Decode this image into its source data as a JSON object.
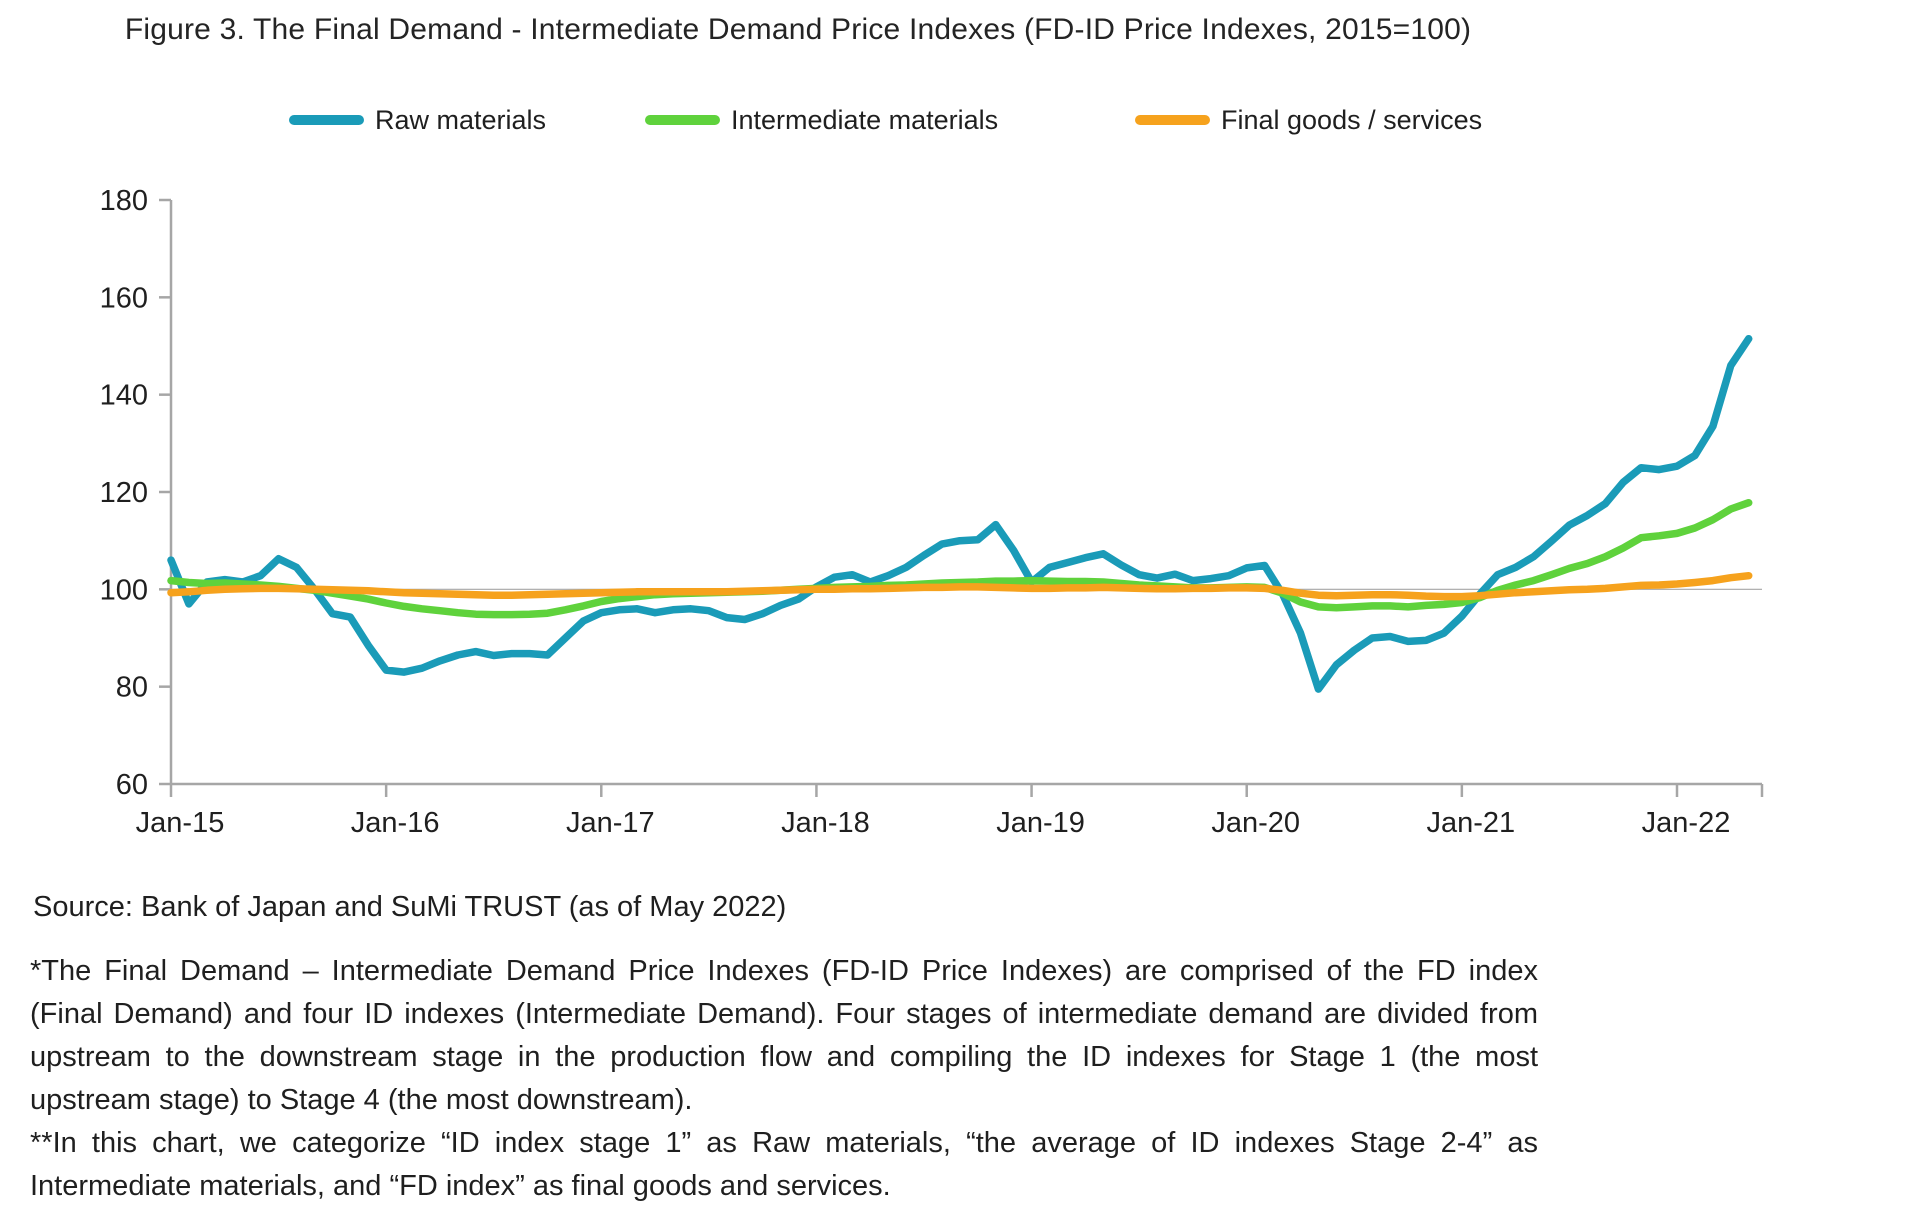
{
  "title": "Figure 3. The Final Demand - Intermediate Demand Price Indexes (FD-ID Price Indexes, 2015=100)",
  "legend": [
    {
      "label": "Raw materials",
      "color": "#1a9bb8"
    },
    {
      "label": "Intermediate materials",
      "color": "#5fd23c"
    },
    {
      "label": "Final goods / services",
      "color": "#f6a21d"
    }
  ],
  "chart_data": {
    "type": "line",
    "title": "Figure 3. The Final Demand - Intermediate Demand Price Indexes (FD-ID Price Indexes, 2015=100)",
    "x_start": "Jan-2015",
    "x_end": "May-2022",
    "x_frequency": "monthly",
    "x_tick_labels": [
      "Jan-15",
      "Jan-16",
      "Jan-17",
      "Jan-18",
      "Jan-19",
      "Jan-20",
      "Jan-21",
      "Jan-22"
    ],
    "y_ticks": [
      60,
      80,
      100,
      120,
      140,
      160,
      180
    ],
    "ylim": [
      60,
      180
    ],
    "baseline_value": 100,
    "grid": "baseline-only",
    "legend_position": "top",
    "axis_color": "#a6a6a6",
    "series": [
      {
        "name": "Raw materials",
        "color": "#1a9bb8",
        "values": [
          106.0,
          97.0,
          101.5,
          102.0,
          101.5,
          102.8,
          106.3,
          104.5,
          100.0,
          95.0,
          94.3,
          88.5,
          83.4,
          83.0,
          83.8,
          85.3,
          86.5,
          87.2,
          86.4,
          86.8,
          86.8,
          86.5,
          90.0,
          93.5,
          95.2,
          95.8,
          96.0,
          95.2,
          95.8,
          96.0,
          95.6,
          94.2,
          93.8,
          95.0,
          96.7,
          98.0,
          100.5,
          102.5,
          103.0,
          101.5,
          102.8,
          104.5,
          107.0,
          109.3,
          110.0,
          110.2,
          113.3,
          108.0,
          101.5,
          104.5,
          105.5,
          106.5,
          107.3,
          105.0,
          103.0,
          102.3,
          103.1,
          101.8,
          102.2,
          102.8,
          104.4,
          104.9,
          99.0,
          91.0,
          79.5,
          84.5,
          87.5,
          90.0,
          90.3,
          89.3,
          89.5,
          91.0,
          94.5,
          99.0,
          103.0,
          104.5,
          106.7,
          109.9,
          113.2,
          115.2,
          117.6,
          122.0,
          125.0,
          124.6,
          125.3,
          127.5,
          133.5,
          146.0,
          151.5
        ]
      },
      {
        "name": "Intermediate materials",
        "color": "#5fd23c",
        "values": [
          101.8,
          101.4,
          101.2,
          101.3,
          101.1,
          100.9,
          100.6,
          100.2,
          99.8,
          99.2,
          98.6,
          98.0,
          97.2,
          96.5,
          96.0,
          95.6,
          95.2,
          94.9,
          94.8,
          94.8,
          94.9,
          95.1,
          95.8,
          96.6,
          97.5,
          98.1,
          98.5,
          98.9,
          99.1,
          99.2,
          99.3,
          99.4,
          99.5,
          99.6,
          99.8,
          100.0,
          100.2,
          100.4,
          100.5,
          100.6,
          100.8,
          100.9,
          101.1,
          101.3,
          101.4,
          101.5,
          101.7,
          101.7,
          101.8,
          101.7,
          101.6,
          101.6,
          101.5,
          101.2,
          100.9,
          100.7,
          100.5,
          100.3,
          100.3,
          100.4,
          100.5,
          100.4,
          99.2,
          97.4,
          96.4,
          96.2,
          96.4,
          96.6,
          96.6,
          96.4,
          96.7,
          96.9,
          97.3,
          98.3,
          99.8,
          100.9,
          101.8,
          103.0,
          104.3,
          105.3,
          106.7,
          108.5,
          110.6,
          111.0,
          111.5,
          112.6,
          114.3,
          116.5,
          117.8
        ]
      },
      {
        "name": "Final goods / services",
        "color": "#f6a21d",
        "values": [
          99.3,
          99.5,
          99.8,
          100.0,
          100.1,
          100.2,
          100.2,
          100.1,
          100.0,
          99.9,
          99.8,
          99.7,
          99.5,
          99.3,
          99.2,
          99.1,
          99.0,
          98.9,
          98.8,
          98.8,
          98.9,
          99.0,
          99.1,
          99.2,
          99.3,
          99.4,
          99.5,
          99.5,
          99.5,
          99.5,
          99.5,
          99.5,
          99.6,
          99.7,
          99.8,
          99.9,
          100.0,
          100.0,
          100.1,
          100.1,
          100.2,
          100.3,
          100.4,
          100.4,
          100.5,
          100.5,
          100.4,
          100.3,
          100.2,
          100.2,
          100.3,
          100.3,
          100.4,
          100.3,
          100.2,
          100.1,
          100.1,
          100.2,
          100.2,
          100.3,
          100.3,
          100.2,
          99.8,
          99.2,
          98.8,
          98.7,
          98.8,
          98.9,
          98.9,
          98.8,
          98.6,
          98.5,
          98.5,
          98.7,
          99.0,
          99.3,
          99.5,
          99.7,
          99.9,
          100.0,
          100.2,
          100.5,
          100.8,
          100.9,
          101.1,
          101.4,
          101.8,
          102.4,
          102.8
        ]
      }
    ]
  },
  "footer": {
    "source": "Source: Bank of Japan and SuMi TRUST (as of May 2022)",
    "footnote1": "*The Final Demand – Intermediate Demand Price Indexes (FD-ID Price Indexes) are comprised of the FD index (Final Demand) and four ID indexes (Intermediate Demand). Four stages of intermediate demand are divided from upstream to the downstream stage in the production flow and compiling the ID indexes for Stage 1 (the most upstream stage) to Stage 4 (the most downstream).",
    "footnote2": "**In this chart, we categorize “ID index stage 1” as Raw materials, “the average of ID indexes Stage 2-4” as Intermediate materials, and “FD index” as final goods and services."
  }
}
